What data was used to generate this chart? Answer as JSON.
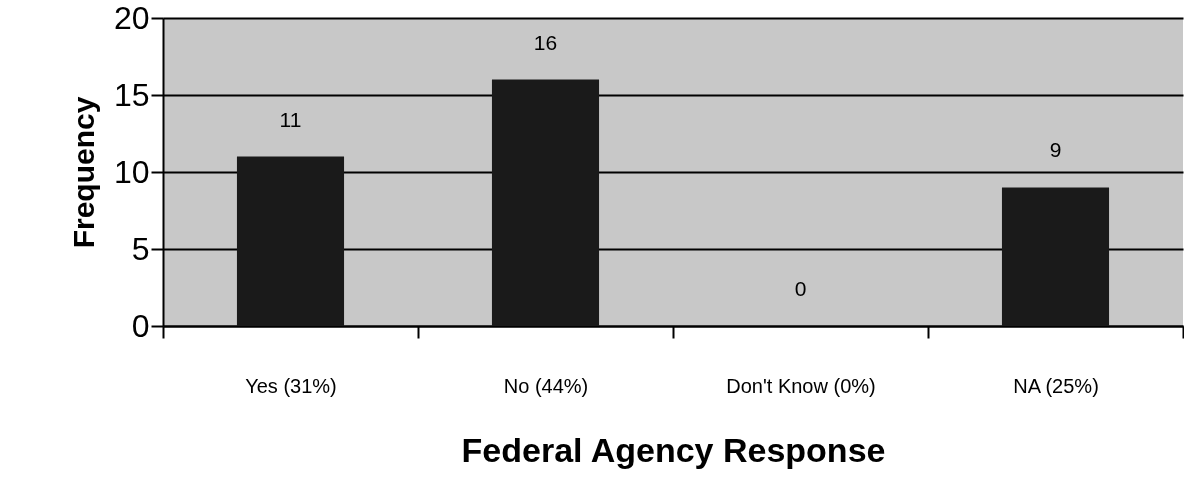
{
  "chart_data": {
    "type": "bar",
    "xlabel": "Federal Agency Response",
    "ylabel": "Frequency",
    "categories": [
      "Yes (31%)",
      "No (44%)",
      "Don't Know (0%)",
      "NA (25%)"
    ],
    "values": [
      11,
      16,
      0,
      9
    ],
    "color": "#1a1a1a",
    "ylim": [
      0,
      20
    ],
    "yticks": [
      0,
      5,
      10,
      15,
      20
    ],
    "grid": "y",
    "data_labels": true
  }
}
